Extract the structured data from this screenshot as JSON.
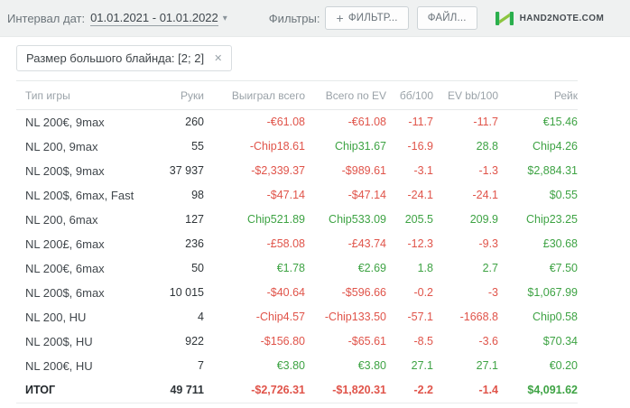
{
  "topbar": {
    "date_label": "Интервал дат:",
    "date_value": "01.01.2021 - 01.01.2022",
    "filters_label": "Фильтры:",
    "add_filter_label": "ФИЛЬТР...",
    "file_label": "ФАЙЛ...",
    "brand": "HAND2NOTE.COM"
  },
  "icons": {
    "plus": "+",
    "caret_down": "▾",
    "close": "✕"
  },
  "filter_chip": {
    "label": "Размер большого блайнда: [2; 2]"
  },
  "table": {
    "headers": [
      "Тип игры",
      "Руки",
      "Выиграл всего",
      "Всего по EV",
      "бб/100",
      "EV bb/100",
      "Рейк"
    ],
    "rows": [
      {
        "game": "NL 200€, 9max",
        "hands": "260",
        "won": "-€61.08",
        "ev": "-€61.08",
        "bb100": "-11.7",
        "ev_bb100": "-11.7",
        "rake": "€15.46"
      },
      {
        "game": "NL 200, 9max",
        "hands": "55",
        "won": "-Chip18.61",
        "ev": "Chip31.67",
        "bb100": "-16.9",
        "ev_bb100": "28.8",
        "rake": "Chip4.26"
      },
      {
        "game": "NL 200$, 9max",
        "hands": "37 937",
        "won": "-$2,339.37",
        "ev": "-$989.61",
        "bb100": "-3.1",
        "ev_bb100": "-1.3",
        "rake": "$2,884.31"
      },
      {
        "game": "NL 200$, 6max, Fast",
        "hands": "98",
        "won": "-$47.14",
        "ev": "-$47.14",
        "bb100": "-24.1",
        "ev_bb100": "-24.1",
        "rake": "$0.55"
      },
      {
        "game": "NL 200, 6max",
        "hands": "127",
        "won": "Chip521.89",
        "ev": "Chip533.09",
        "bb100": "205.5",
        "ev_bb100": "209.9",
        "rake": "Chip23.25"
      },
      {
        "game": "NL 200£, 6max",
        "hands": "236",
        "won": "-£58.08",
        "ev": "-£43.74",
        "bb100": "-12.3",
        "ev_bb100": "-9.3",
        "rake": "£30.68"
      },
      {
        "game": "NL 200€, 6max",
        "hands": "50",
        "won": "€1.78",
        "ev": "€2.69",
        "bb100": "1.8",
        "ev_bb100": "2.7",
        "rake": "€7.50"
      },
      {
        "game": "NL 200$, 6max",
        "hands": "10 015",
        "won": "-$40.64",
        "ev": "-$596.66",
        "bb100": "-0.2",
        "ev_bb100": "-3",
        "rake": "$1,067.99"
      },
      {
        "game": "NL 200, HU",
        "hands": "4",
        "won": "-Chip4.57",
        "ev": "-Chip133.50",
        "bb100": "-57.1",
        "ev_bb100": "-1668.8",
        "rake": "Chip0.58"
      },
      {
        "game": "NL 200$, HU",
        "hands": "922",
        "won": "-$156.80",
        "ev": "-$65.61",
        "bb100": "-8.5",
        "ev_bb100": "-3.6",
        "rake": "$70.34"
      },
      {
        "game": "NL 200€, HU",
        "hands": "7",
        "won": "€3.80",
        "ev": "€3.80",
        "bb100": "27.1",
        "ev_bb100": "27.1",
        "rake": "€0.20"
      },
      {
        "game": "ИТОГ",
        "hands": "49 711",
        "won": "-$2,726.31",
        "ev": "-$1,820.31",
        "bb100": "-2.2",
        "ev_bb100": "-1.4",
        "rake": "$4,091.62",
        "total": true
      }
    ]
  },
  "colors": {
    "negative": "#e0544a",
    "positive": "#3ea344",
    "brand_green": "#2aaf4d"
  }
}
